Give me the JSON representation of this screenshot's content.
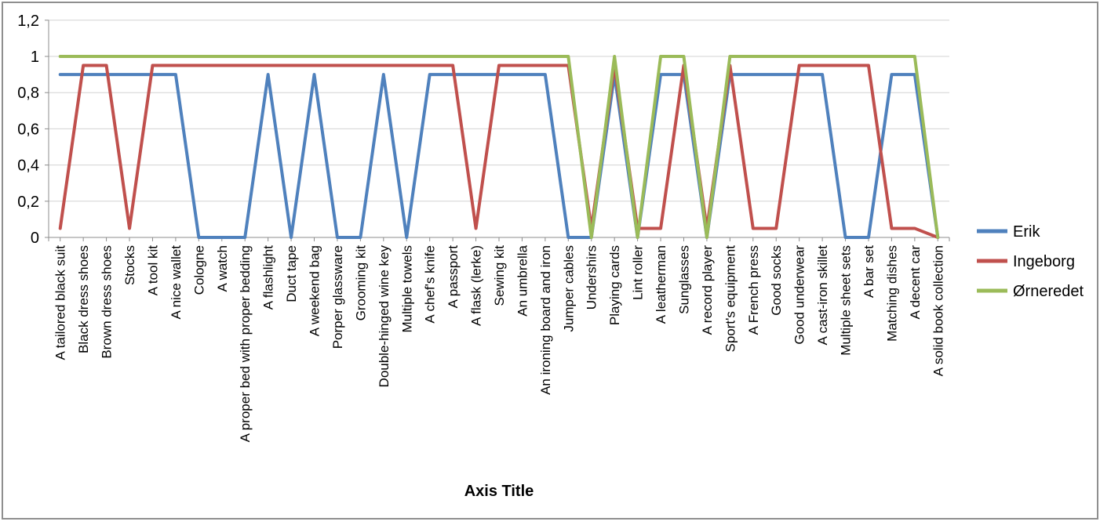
{
  "window": {
    "background": "#ffffff",
    "border_color": "#8f8f8f"
  },
  "chart_data": {
    "type": "line",
    "title": "",
    "xlabel": "Axis Title",
    "ylabel": "",
    "ylim": [
      0,
      1.2
    ],
    "grid": true,
    "legend_position": "right",
    "y_tick_values": [
      0,
      0.2,
      0.4,
      0.6,
      0.8,
      1,
      1.2
    ],
    "y_tick_labels": [
      "0",
      "0,2",
      "0,4",
      "0,6",
      "0,8",
      "1",
      "1,2"
    ],
    "categories": [
      "A tailored black suit",
      "Black dress shoes",
      "Brown dress shoes",
      "Stocks",
      "A tool kit",
      "A nice wallet",
      "Cologne",
      "A watch",
      "A proper bed with proper bedding",
      "A flashlight",
      "Duct tape",
      "A weekend bag",
      "Porper glassware",
      "Grooming kit",
      "Double-hinged wine key",
      "Multiple towels",
      "A chef's knife",
      "A passport",
      "A flask (lerke)",
      "Sewing kit",
      "An umbrella",
      "An ironing board and iron",
      "Jumper cables",
      "Undershirs",
      "Playing cards",
      "Lint roller",
      "A leatherman",
      "Sunglasses",
      "A record player",
      "Sport's equipment",
      "A French press",
      "Good socks",
      "Good underwear",
      "A cast-iron skillet",
      "Multiple sheet sets",
      "A bar set",
      "Matching dishes",
      "A decent car",
      "A solid book collection"
    ],
    "series": [
      {
        "name": "Erik",
        "color": "#4F81BD",
        "values": [
          0.9,
          0.9,
          0.9,
          0.9,
          0.9,
          0.9,
          0,
          0,
          0,
          0.9,
          0,
          0.9,
          0,
          0,
          0.9,
          0,
          0.9,
          0.9,
          0.9,
          0.9,
          0.9,
          0.9,
          0,
          0,
          0.9,
          0,
          0.9,
          0.9,
          0,
          0.9,
          0.9,
          0.9,
          0.9,
          0.9,
          0,
          0,
          0.9,
          0.9,
          0
        ]
      },
      {
        "name": "Ingeborg",
        "color": "#C0504D",
        "values": [
          0.05,
          0.95,
          0.95,
          0.05,
          0.95,
          0.95,
          0.95,
          0.95,
          0.95,
          0.95,
          0.95,
          0.95,
          0.95,
          0.95,
          0.95,
          0.95,
          0.95,
          0.95,
          0.05,
          0.95,
          0.95,
          0.95,
          0.95,
          0.05,
          0.95,
          0.05,
          0.05,
          0.95,
          0.05,
          0.95,
          0.05,
          0.05,
          0.95,
          0.95,
          0.95,
          0.95,
          0.05,
          0.05,
          0
        ]
      },
      {
        "name": "Ørneredet",
        "color": "#9BBB59",
        "values": [
          1,
          1,
          1,
          1,
          1,
          1,
          1,
          1,
          1,
          1,
          1,
          1,
          1,
          1,
          1,
          1,
          1,
          1,
          1,
          1,
          1,
          1,
          1,
          0,
          1,
          0,
          1,
          1,
          0,
          1,
          1,
          1,
          1,
          1,
          1,
          1,
          1,
          1,
          0
        ]
      }
    ],
    "style": {
      "gridline_color": "#D3D3D3",
      "axis_color": "#8C8C8C",
      "text_color": "#000000"
    }
  }
}
